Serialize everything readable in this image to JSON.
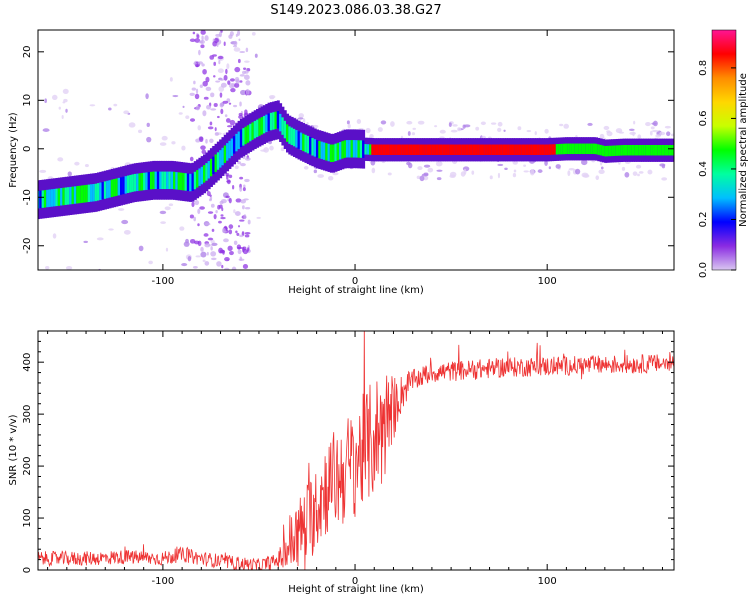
{
  "chart_data": [
    {
      "type": "heatmap",
      "title": "S149.2023.086.03.38.G27",
      "xlabel": "Height of straight line (km)",
      "ylabel": "Frequency (Hz)",
      "xlim": [
        -165,
        166
      ],
      "ylim": [
        -25,
        24.5
      ],
      "x_ticks": [
        -100,
        0,
        100
      ],
      "y_ticks": [
        -20,
        -10,
        0,
        10,
        20
      ],
      "colorbar": {
        "label": "Normalized spectral amplitude",
        "range": [
          0,
          0.95
        ],
        "ticks": [
          0.0,
          0.2,
          0.4,
          0.6,
          0.8
        ],
        "colors": [
          "#d9c7f0",
          "#8a2be2",
          "#0000ff",
          "#00bfff",
          "#00ffa0",
          "#00ff00",
          "#c8ff00",
          "#ffd700",
          "#ff8c00",
          "#ff0000",
          "#ff1493"
        ]
      },
      "ridge": [
        [
          -165,
          -10.5
        ],
        [
          -155,
          -10
        ],
        [
          -145,
          -9.5
        ],
        [
          -135,
          -9
        ],
        [
          -125,
          -8
        ],
        [
          -115,
          -7
        ],
        [
          -105,
          -6.5
        ],
        [
          -95,
          -6.5
        ],
        [
          -85,
          -7
        ],
        [
          -78,
          -5
        ],
        [
          -70,
          -2
        ],
        [
          -60,
          2
        ],
        [
          -52,
          4
        ],
        [
          -45,
          5.5
        ],
        [
          -40,
          6
        ],
        [
          -35,
          3
        ],
        [
          -28,
          1.5
        ],
        [
          -20,
          0
        ],
        [
          -12,
          -1
        ],
        [
          -5,
          0
        ],
        [
          0,
          0
        ],
        [
          10,
          -0.2
        ],
        [
          100,
          -0.2
        ],
        [
          110,
          0
        ],
        [
          125,
          0
        ],
        [
          130,
          -0.5
        ],
        [
          140,
          -0.3
        ],
        [
          166,
          -0.3
        ]
      ]
    },
    {
      "type": "line",
      "xlabel": "Height of straight line (km)",
      "ylabel": "SNR (10 * v/v)",
      "xlim": [
        -165,
        166
      ],
      "ylim": [
        0,
        460
      ],
      "x_ticks": [
        -100,
        0,
        100
      ],
      "y_ticks": [
        0,
        100,
        200,
        300,
        400
      ],
      "series_color": "#ee3333",
      "profile": [
        [
          -165,
          22
        ],
        [
          -140,
          22
        ],
        [
          -120,
          25
        ],
        [
          -100,
          22
        ],
        [
          -90,
          30
        ],
        [
          -80,
          22
        ],
        [
          -60,
          12
        ],
        [
          -50,
          8
        ],
        [
          -40,
          18
        ],
        [
          -35,
          45
        ],
        [
          -25,
          90
        ],
        [
          -15,
          160
        ],
        [
          -5,
          190
        ],
        [
          5,
          230
        ],
        [
          15,
          280
        ],
        [
          20,
          310
        ],
        [
          25,
          345
        ],
        [
          30,
          365
        ],
        [
          40,
          380
        ],
        [
          60,
          385
        ],
        [
          80,
          390
        ],
        [
          100,
          392
        ],
        [
          130,
          395
        ],
        [
          166,
          398
        ]
      ],
      "noise_amplitude": [
        [
          -165,
          14
        ],
        [
          -40,
          14
        ],
        [
          -35,
          60
        ],
        [
          -20,
          90
        ],
        [
          0,
          110
        ],
        [
          15,
          120
        ],
        [
          22,
          45
        ],
        [
          30,
          20
        ],
        [
          166,
          18
        ]
      ]
    }
  ]
}
